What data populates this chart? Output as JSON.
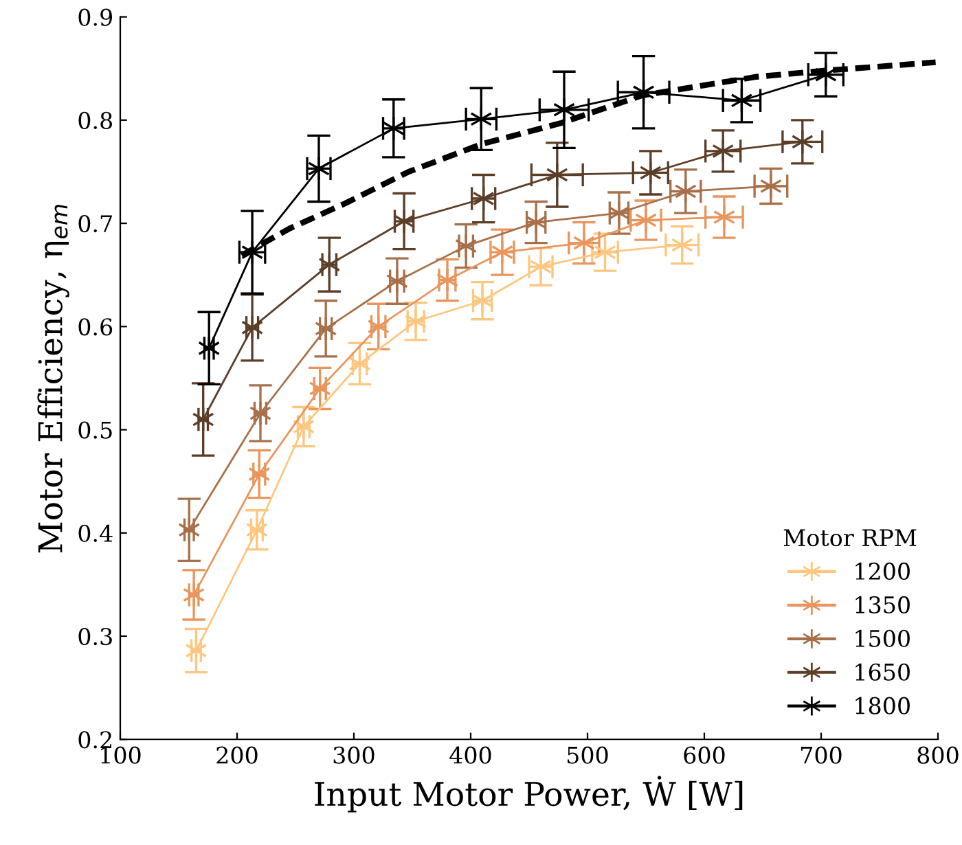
{
  "chart_data": {
    "type": "line",
    "xlabel": "Input Motor Power, Ẇ [W]",
    "ylabel": "Motor Efficiency, η$_{em}$",
    "legend_title": "Motor RPM",
    "legend": "bottom right",
    "grid": false,
    "marker": "cross",
    "line_style": "solid",
    "xlim": [
      100,
      800
    ],
    "xticks": [
      100,
      200,
      300,
      400,
      500,
      600,
      700,
      800
    ],
    "ylim": [
      0.2,
      0.9
    ],
    "yticks": [
      0.2,
      0.3,
      0.4,
      0.5,
      0.6,
      0.7,
      0.8,
      0.9
    ],
    "series": [
      {
        "name": "1200",
        "color": "#fdc77f",
        "x": [
          165,
          217,
          257,
          305,
          353,
          410,
          460,
          515,
          581
        ],
        "values": [
          0.286,
          0.403,
          0.503,
          0.564,
          0.605,
          0.625,
          0.658,
          0.672,
          0.679
        ],
        "errors": [
          0.021,
          0.019,
          0.019,
          0.02,
          0.018,
          0.018,
          0.018,
          0.018,
          0.018
        ],
        "xerrors": [
          4,
          5,
          5,
          6,
          7,
          8,
          10,
          11,
          14
        ]
      },
      {
        "name": "1350",
        "color": "#e9955c",
        "x": [
          163,
          219,
          271,
          321,
          380,
          427,
          497,
          550,
          617
        ],
        "values": [
          0.34,
          0.457,
          0.54,
          0.6,
          0.645,
          0.672,
          0.681,
          0.703,
          0.706
        ],
        "errors": [
          0.024,
          0.023,
          0.02,
          0.022,
          0.02,
          0.022,
          0.02,
          0.019,
          0.02
        ],
        "xerrors": [
          4,
          5,
          5,
          6,
          7,
          10,
          13,
          13,
          16
        ]
      },
      {
        "name": "1500",
        "color": "#a8704a",
        "x": [
          159,
          220,
          276,
          337,
          396,
          456,
          527,
          584,
          657
        ],
        "values": [
          0.403,
          0.516,
          0.598,
          0.644,
          0.678,
          0.701,
          0.71,
          0.731,
          0.736
        ],
        "errors": [
          0.03,
          0.027,
          0.027,
          0.022,
          0.021,
          0.02,
          0.02,
          0.021,
          0.017
        ],
        "xerrors": [
          4,
          5,
          5,
          6,
          6,
          8,
          8,
          13,
          14
        ]
      },
      {
        "name": "1650",
        "color": "#5c3d28",
        "x": [
          171,
          213,
          279,
          343,
          411,
          474,
          554,
          616,
          684
        ],
        "values": [
          0.51,
          0.599,
          0.66,
          0.702,
          0.724,
          0.747,
          0.749,
          0.77,
          0.779
        ],
        "errors": [
          0.035,
          0.032,
          0.026,
          0.027,
          0.023,
          0.031,
          0.021,
          0.02,
          0.021
        ],
        "xerrors": [
          4,
          5,
          6,
          8,
          10,
          22,
          15,
          15,
          17
        ]
      },
      {
        "name": "1800",
        "color": "#000000",
        "x": [
          176,
          213,
          270,
          334,
          409,
          480,
          548,
          632,
          704
        ],
        "values": [
          0.579,
          0.672,
          0.753,
          0.792,
          0.801,
          0.81,
          0.827,
          0.819,
          0.844
        ],
        "errors": [
          0.035,
          0.04,
          0.032,
          0.028,
          0.03,
          0.037,
          0.035,
          0.021,
          0.021
        ],
        "xerrors": [
          4,
          11,
          10,
          9,
          13,
          21,
          22,
          16,
          15
        ]
      },
      {
        "color": "#000000",
        "marker": "none",
        "line_style": "dashed",
        "x": [
          204,
          245,
          292,
          347,
          410,
          477,
          547,
          645,
          704,
          798
        ],
        "values": [
          0.669,
          0.695,
          0.719,
          0.75,
          0.777,
          0.797,
          0.824,
          0.842,
          0.848,
          0.856
        ]
      }
    ]
  }
}
